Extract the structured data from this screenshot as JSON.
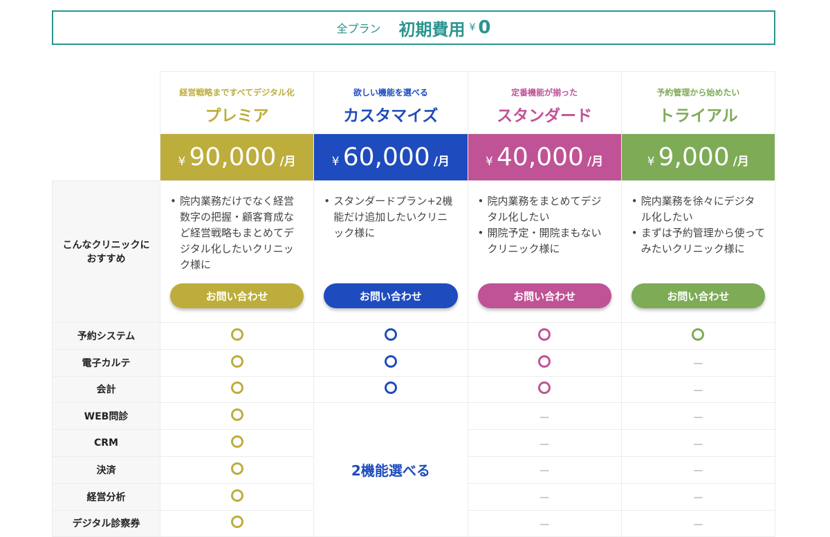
{
  "banner": {
    "all_plans": "全プラン",
    "initial_cost": "初期費用",
    "yen": "¥",
    "amount": "0"
  },
  "row_label_recommend": "こんなクリニックにおすすめ",
  "contact_label": "お問い合わせ",
  "yen": "¥",
  "per_month": "/月",
  "plans": [
    {
      "tagline": "経営戦略まですべてデジタル化",
      "name": "プレミア",
      "price": "90,000",
      "color": "#bdad3c",
      "recommend": [
        "院内業務だけでなく経営数字の把握・顧客育成など経営戦略もまとめてデジタル化したいクリニック様に"
      ]
    },
    {
      "tagline": "欲しい機能を選べる",
      "name": "カスタマイズ",
      "price": "60,000",
      "color": "#1e4bbd",
      "recommend": [
        "スタンダードプラン+2機能だけ追加したいクリニック様に"
      ]
    },
    {
      "tagline": "定番機能が揃った",
      "name": "スタンダード",
      "price": "40,000",
      "color": "#c05296",
      "recommend": [
        "院内業務をまとめてデジタル化したい",
        "開院予定・開院まもないクリニック様に"
      ]
    },
    {
      "tagline": "予約管理から始めたい",
      "name": "トライアル",
      "price": "9,000",
      "color": "#7eab56",
      "recommend": [
        "院内業務を徐々にデジタル化したい",
        "まずは予約管理から使ってみたいクリニック様に"
      ]
    }
  ],
  "features": [
    {
      "name": "予約システム",
      "values": [
        "yes",
        "yes",
        "yes",
        "yes"
      ]
    },
    {
      "name": "電子カルテ",
      "values": [
        "yes",
        "yes",
        "yes",
        "no"
      ]
    },
    {
      "name": "会計",
      "values": [
        "yes",
        "yes",
        "yes",
        "no"
      ]
    },
    {
      "name": "WEB問診",
      "values": [
        "yes",
        "choose",
        "no",
        "no"
      ]
    },
    {
      "name": "CRM",
      "values": [
        "yes",
        "choose",
        "no",
        "no"
      ]
    },
    {
      "name": "決済",
      "values": [
        "yes",
        "choose",
        "no",
        "no"
      ]
    },
    {
      "name": "経営分析",
      "values": [
        "yes",
        "choose",
        "no",
        "no"
      ]
    },
    {
      "name": "デジタル診察券",
      "values": [
        "yes",
        "choose",
        "no",
        "no"
      ]
    }
  ],
  "choose_label": "2機能選べる",
  "dash": "—"
}
